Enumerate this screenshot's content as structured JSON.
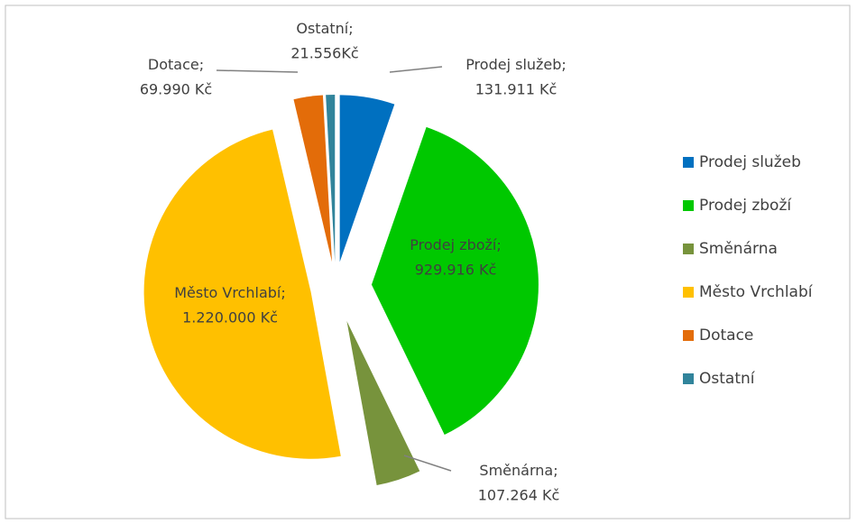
{
  "chart_data": {
    "type": "pie",
    "categories": [
      "Prodej služeb",
      "Prodej zboží",
      "Směnárna",
      "Město Vrchlabí",
      "Dotace",
      "Ostatní"
    ],
    "values": [
      131911,
      929916,
      107264,
      1220000,
      69990,
      21556
    ],
    "value_labels": [
      "131.911 Kč",
      "929.916 Kč",
      "107.264 Kč",
      "1.220.000 Kč",
      "69.990 Kč",
      "21.556Kč"
    ],
    "label_separator": ";",
    "colors": [
      "#0070c0",
      "#00c800",
      "#77933c",
      "#ffc000",
      "#e36c09",
      "#31849b"
    ],
    "legend": "right"
  }
}
